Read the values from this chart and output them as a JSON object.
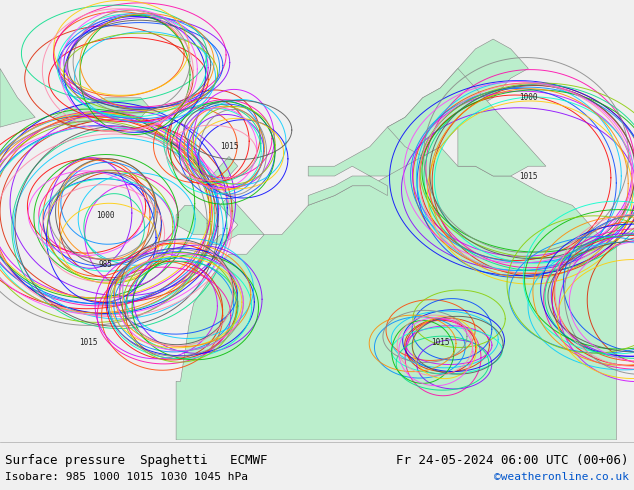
{
  "title_left": "Surface pressure  Spaghetti   ECMWF",
  "title_right": "Fr 24-05-2024 06:00 UTC (00+06)",
  "subtitle_left": "Isobare: 985 1000 1015 1030 1045 hPa",
  "subtitle_right": "©weatheronline.co.uk",
  "subtitle_right_color": "#0055cc",
  "map_bg_sea": "#e0e8e8",
  "land_color": "#bbeecc",
  "bottom_bar_color": "#f0f0f0",
  "text_color": "#000000",
  "font_size_title": 9,
  "font_size_subtitle": 8,
  "font_family": "monospace",
  "member_colors": [
    "#ff0000",
    "#dd2200",
    "#ff4400",
    "#ff00aa",
    "#cc00ff",
    "#8800ff",
    "#0000ff",
    "#0044ff",
    "#0088ff",
    "#00ccff",
    "#00ffcc",
    "#00dd88",
    "#00bb00",
    "#88cc00",
    "#ffcc00",
    "#ff8800",
    "#888888",
    "#555555",
    "#ff44ff",
    "#ff88aa"
  ]
}
